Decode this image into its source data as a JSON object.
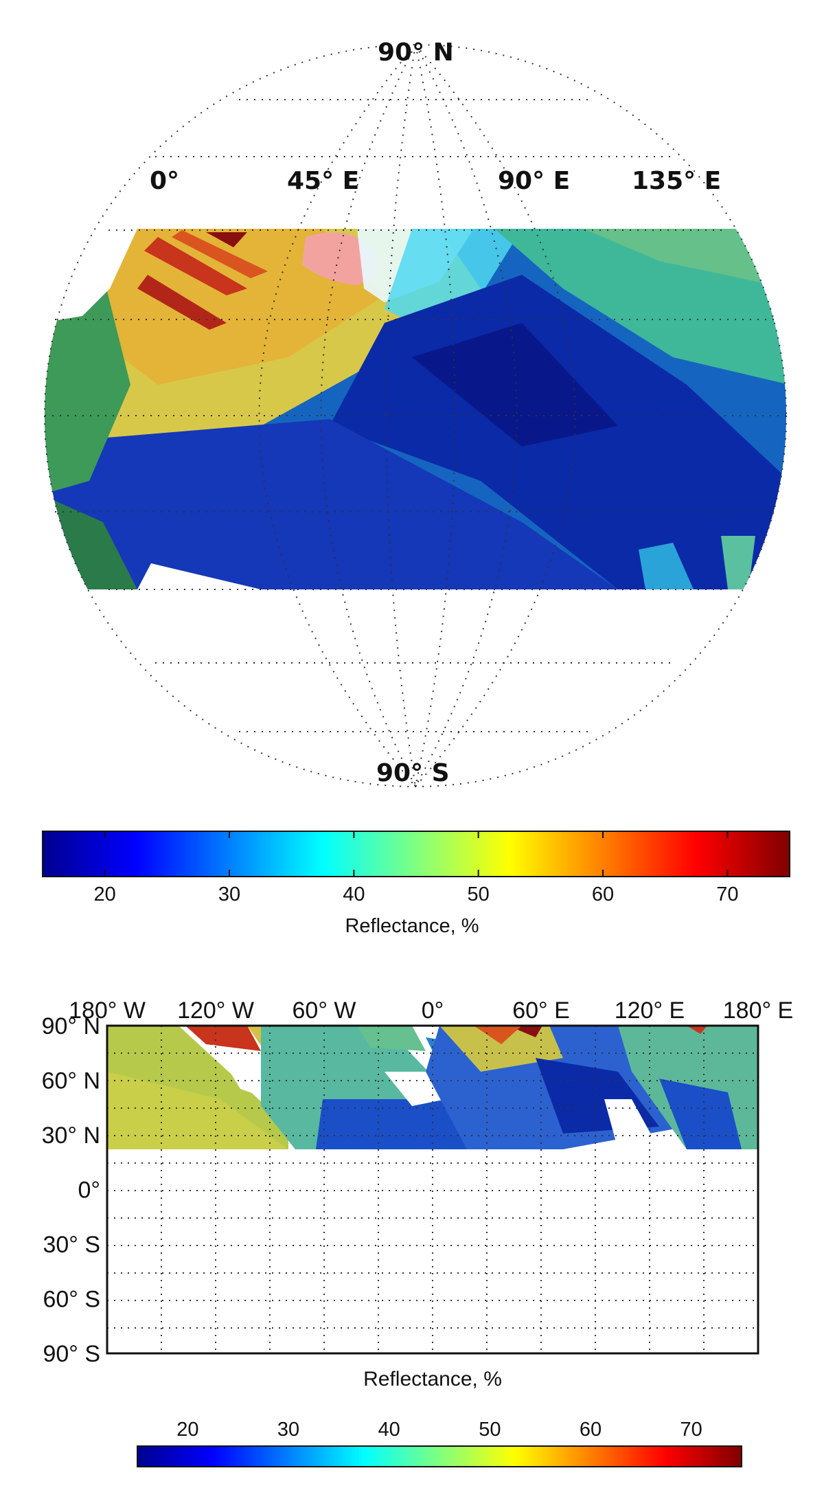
{
  "globe": {
    "lat_labels": [
      "90° N",
      "90° S"
    ],
    "lon_labels": [
      "0°",
      "45° E",
      "90° E",
      "135° E"
    ]
  },
  "colorbar_top": {
    "label": "Reflectance, %",
    "ticks": [
      "20",
      "30",
      "40",
      "50",
      "60",
      "70"
    ],
    "range": [
      15,
      75
    ]
  },
  "map": {
    "lon_labels": [
      "180° W",
      "120° W",
      "60° W",
      "0°",
      "60° E",
      "120° E",
      "180° E"
    ],
    "lat_labels": [
      "90° N",
      "60° N",
      "30° N",
      "0°",
      "30° S",
      "60° S",
      "90° S"
    ],
    "label": "Reflectance, %",
    "coverage_lat": [
      -30,
      30
    ]
  },
  "colorbar_bottom": {
    "ticks": [
      "20",
      "30",
      "40",
      "50",
      "60",
      "70"
    ],
    "range": [
      15,
      75
    ]
  },
  "colormap": [
    "#00008f",
    "#0000ff",
    "#00ffff",
    "#ffff00",
    "#ff0000",
    "#800000"
  ]
}
